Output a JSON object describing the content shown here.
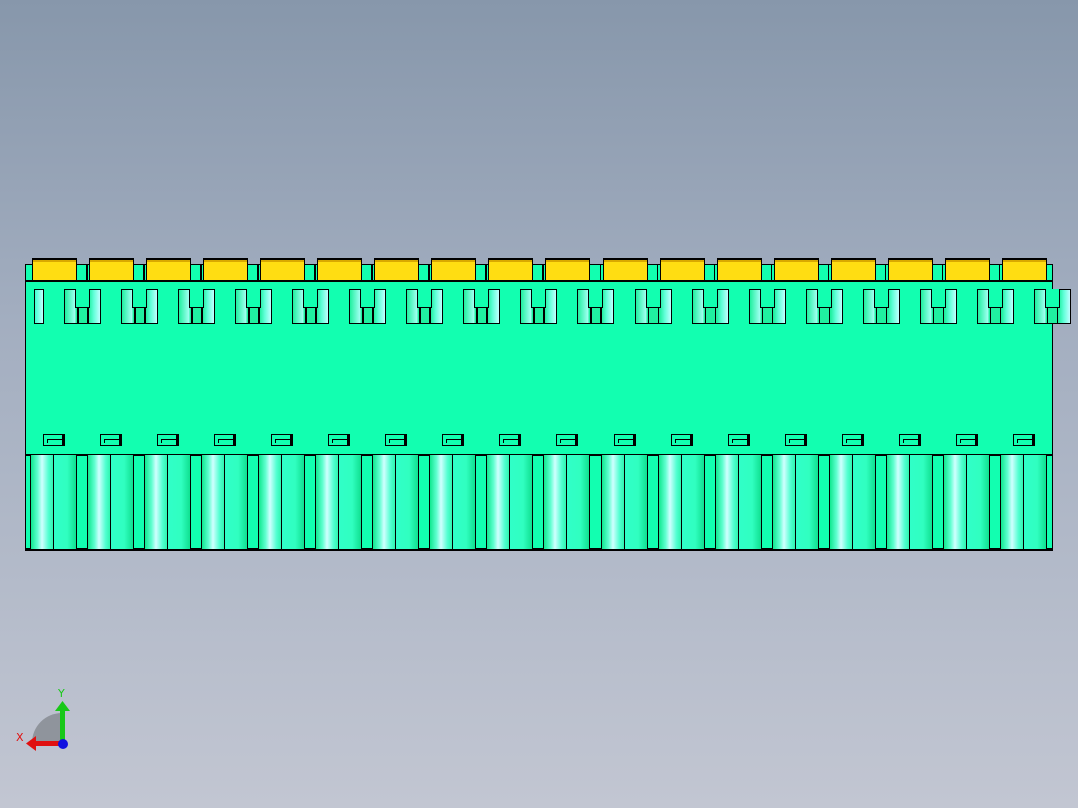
{
  "viewport": {
    "background": [
      "#8797ab",
      "#c2c6d2"
    ]
  },
  "model": {
    "units": 18,
    "colors": {
      "body": "#12ffb0",
      "tabs": "#ffdd12",
      "edges": "#000000"
    }
  },
  "triad": {
    "x_label": "X",
    "y_label": "Y",
    "colors": {
      "x": "#ff0000",
      "y": "#00cc00",
      "z": "#0000ff"
    }
  }
}
